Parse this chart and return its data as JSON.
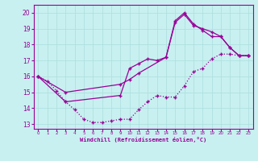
{
  "xlabel": "Windchill (Refroidissement éolien,°C)",
  "bg_color": "#c8f0f0",
  "line_color": "#990099",
  "grid_color": "#b0e0e0",
  "xlim": [
    -0.5,
    23.5
  ],
  "ylim": [
    12.7,
    20.5
  ],
  "yticks": [
    13,
    14,
    15,
    16,
    17,
    18,
    19,
    20
  ],
  "xticks": [
    0,
    1,
    2,
    3,
    4,
    5,
    6,
    7,
    8,
    9,
    10,
    11,
    12,
    13,
    14,
    15,
    16,
    17,
    18,
    19,
    20,
    21,
    22,
    23
  ],
  "line1_x": [
    0,
    1,
    2,
    3,
    4,
    5,
    6,
    7,
    8,
    9,
    10,
    11,
    12,
    13,
    14,
    15,
    16,
    17,
    18,
    19,
    20,
    21,
    22,
    23
  ],
  "line1_y": [
    16.0,
    15.7,
    15.1,
    14.4,
    13.9,
    13.3,
    13.1,
    13.1,
    13.2,
    13.3,
    13.3,
    13.9,
    14.4,
    14.8,
    14.7,
    14.7,
    15.4,
    16.3,
    16.5,
    17.1,
    17.4,
    17.4,
    17.3,
    17.3
  ],
  "line2_x": [
    0,
    3,
    9,
    10,
    11,
    12,
    13,
    14,
    15,
    16,
    17,
    18,
    19,
    20,
    21,
    22,
    23
  ],
  "line2_y": [
    16.0,
    14.4,
    14.8,
    16.5,
    16.8,
    17.1,
    17.0,
    17.2,
    19.5,
    20.0,
    19.3,
    18.9,
    18.5,
    18.5,
    17.8,
    17.3,
    17.3
  ],
  "line3_x": [
    0,
    3,
    9,
    10,
    11,
    14,
    15,
    16,
    17,
    18,
    19,
    20,
    21,
    22,
    23
  ],
  "line3_y": [
    16.0,
    15.0,
    15.5,
    15.8,
    16.2,
    17.2,
    19.4,
    19.9,
    19.2,
    19.0,
    18.8,
    18.5,
    17.8,
    17.3,
    17.3
  ]
}
